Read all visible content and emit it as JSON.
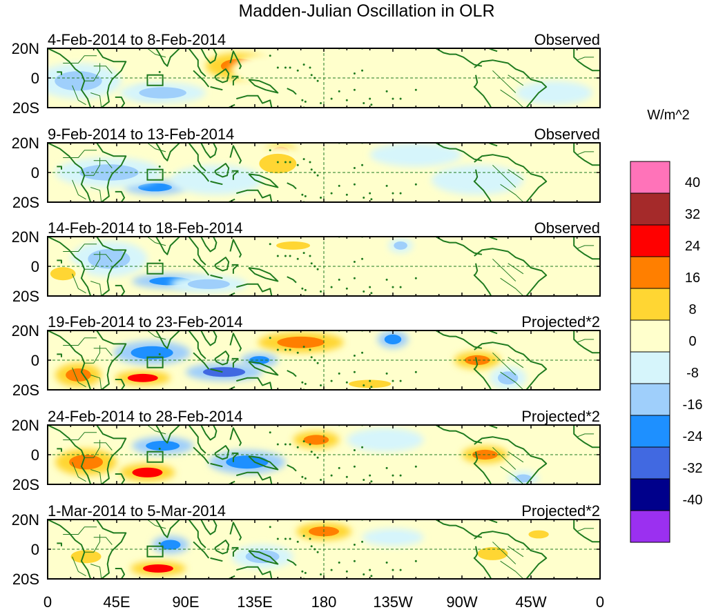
{
  "chart_data": {
    "type": "heatmap",
    "title": "Madden-Julian Oscillation in OLR",
    "units": "W/m^2",
    "x_tick_labels": [
      "0",
      "45E",
      "90E",
      "135E",
      "180",
      "135W",
      "90W",
      "45W",
      "0"
    ],
    "x_ticks_lon": [
      0,
      45,
      90,
      135,
      180,
      225,
      270,
      315,
      360
    ],
    "y_tick_labels": [
      "20N",
      "0",
      "20S"
    ],
    "y_ticks_lat": [
      20,
      0,
      -20
    ],
    "xlim": [
      0,
      360
    ],
    "ylim": [
      -20,
      20
    ],
    "colorbar": {
      "bins": [
        {
          "color": "#9b30f0"
        },
        {
          "color": "#00008b"
        },
        {
          "color": "#4169e1"
        },
        {
          "color": "#1e90ff"
        },
        {
          "color": "#9fcffb"
        },
        {
          "color": "#d6f5fb"
        },
        {
          "color": "#ffffcc"
        },
        {
          "color": "#ffd633"
        },
        {
          "color": "#ff7f00"
        },
        {
          "color": "#ff0000"
        },
        {
          "color": "#a52a2a"
        },
        {
          "color": "#ff73b9"
        }
      ],
      "tick_labels": [
        "-40",
        "-32",
        "-24",
        "-16",
        "-8",
        "0",
        "8",
        "16",
        "24",
        "32",
        "40"
      ]
    },
    "panels": [
      {
        "period": "4-Feb-2014 to 8-Feb-2014",
        "kind": "Observed",
        "anomalies": [
          {
            "lon": 125,
            "lat": 8,
            "rlon": 22,
            "rlat": 9,
            "value": 22
          },
          {
            "lon": 136,
            "lat": 4,
            "rlon": 20,
            "rlat": 5,
            "value": 20
          },
          {
            "lon": 68,
            "lat": -10,
            "rlon": 12,
            "rlat": 4,
            "value": -22
          },
          {
            "lon": 75,
            "lat": -10,
            "rlon": 28,
            "rlat": 7,
            "value": -10
          },
          {
            "lon": 20,
            "lat": -2,
            "rlon": 28,
            "rlat": 12,
            "value": -10
          },
          {
            "lon": 150,
            "lat": 5,
            "rlon": 30,
            "rlat": 12,
            "value": 5
          },
          {
            "lon": 200,
            "lat": -5,
            "rlon": 30,
            "rlat": 10,
            "value": 5
          },
          {
            "lon": 320,
            "lat": 5,
            "rlon": 25,
            "rlat": 10,
            "value": 5
          },
          {
            "lon": 330,
            "lat": -10,
            "rlon": 25,
            "rlat": 8,
            "value": -5
          }
        ]
      },
      {
        "period": "9-Feb-2014 to 13-Feb-2014",
        "kind": "Observed",
        "anomalies": [
          {
            "lon": 152,
            "lat": 14,
            "rlon": 10,
            "rlat": 6,
            "value": 20
          },
          {
            "lon": 150,
            "lat": 6,
            "rlon": 22,
            "rlat": 12,
            "value": 10
          },
          {
            "lon": 70,
            "lat": -10,
            "rlon": 20,
            "rlat": 5,
            "value": -20
          },
          {
            "lon": 40,
            "lat": 0,
            "rlon": 35,
            "rlat": 10,
            "value": -10
          },
          {
            "lon": 110,
            "lat": -5,
            "rlon": 30,
            "rlat": 10,
            "value": -8
          },
          {
            "lon": 240,
            "lat": 12,
            "rlon": 30,
            "rlat": 8,
            "value": -8
          },
          {
            "lon": 280,
            "lat": -5,
            "rlon": 30,
            "rlat": 10,
            "value": -6
          },
          {
            "lon": 340,
            "lat": 8,
            "rlon": 18,
            "rlat": 8,
            "value": 5
          }
        ]
      },
      {
        "period": "14-Feb-2014 to 18-Feb-2014",
        "kind": "Observed",
        "anomalies": [
          {
            "lon": 160,
            "lat": 14,
            "rlon": 20,
            "rlat": 5,
            "value": 12
          },
          {
            "lon": 80,
            "lat": -10,
            "rlon": 25,
            "rlat": 5,
            "value": -20
          },
          {
            "lon": 105,
            "lat": -12,
            "rlon": 25,
            "rlat": 6,
            "value": -10
          },
          {
            "lon": 40,
            "lat": 5,
            "rlon": 25,
            "rlat": 12,
            "value": -10
          },
          {
            "lon": 10,
            "lat": -5,
            "rlon": 15,
            "rlat": 8,
            "value": 10
          },
          {
            "lon": 210,
            "lat": 5,
            "rlon": 35,
            "rlat": 10,
            "value": 5
          },
          {
            "lon": 230,
            "lat": 14,
            "rlon": 8,
            "rlat": 5,
            "value": -10
          },
          {
            "lon": 300,
            "lat": 0,
            "rlon": 30,
            "rlat": 10,
            "value": 5
          }
        ]
      },
      {
        "period": "19-Feb-2014 to 23-Feb-2014",
        "kind": "Projected*2",
        "anomalies": [
          {
            "lon": 165,
            "lat": 12,
            "rlon": 28,
            "rlat": 7,
            "value": 18
          },
          {
            "lon": 62,
            "lat": -12,
            "rlon": 18,
            "rlat": 5,
            "value": 28
          },
          {
            "lon": 20,
            "lat": -10,
            "rlon": 15,
            "rlat": 8,
            "value": 18
          },
          {
            "lon": 68,
            "lat": 5,
            "rlon": 25,
            "rlat": 8,
            "value": -22
          },
          {
            "lon": 115,
            "lat": -8,
            "rlon": 25,
            "rlat": 6,
            "value": -28
          },
          {
            "lon": 138,
            "lat": 0,
            "rlon": 12,
            "rlat": 5,
            "value": -20
          },
          {
            "lon": 225,
            "lat": 14,
            "rlon": 10,
            "rlat": 6,
            "value": -18
          },
          {
            "lon": 210,
            "lat": -16,
            "rlon": 25,
            "rlat": 5,
            "value": 10
          },
          {
            "lon": 280,
            "lat": 0,
            "rlon": 15,
            "rlat": 6,
            "value": 16
          },
          {
            "lon": 300,
            "lat": -12,
            "rlon": 12,
            "rlat": 8,
            "value": -15
          },
          {
            "lon": 335,
            "lat": 5,
            "rlon": 20,
            "rlat": 8,
            "value": 5
          }
        ]
      },
      {
        "period": "24-Feb-2014 to 28-Feb-2014",
        "kind": "Projected*2",
        "anomalies": [
          {
            "lon": 175,
            "lat": 10,
            "rlon": 15,
            "rlat": 6,
            "value": 22
          },
          {
            "lon": 65,
            "lat": -12,
            "rlon": 18,
            "rlat": 6,
            "value": 28
          },
          {
            "lon": 25,
            "lat": -5,
            "rlon": 20,
            "rlat": 9,
            "value": 18
          },
          {
            "lon": 75,
            "lat": 6,
            "rlon": 20,
            "rlat": 6,
            "value": -20
          },
          {
            "lon": 130,
            "lat": -5,
            "rlon": 25,
            "rlat": 8,
            "value": -22
          },
          {
            "lon": 220,
            "lat": 10,
            "rlon": 25,
            "rlat": 8,
            "value": -8
          },
          {
            "lon": 285,
            "lat": 0,
            "rlon": 15,
            "rlat": 6,
            "value": 18
          },
          {
            "lon": 310,
            "lat": -16,
            "rlon": 10,
            "rlat": 5,
            "value": -16
          }
        ]
      },
      {
        "period": "1-Mar-2014 to 5-Mar-2014",
        "kind": "Projected*2",
        "anomalies": [
          {
            "lon": 180,
            "lat": 12,
            "rlon": 18,
            "rlat": 6,
            "value": 20
          },
          {
            "lon": 72,
            "lat": -13,
            "rlon": 18,
            "rlat": 5,
            "value": 28
          },
          {
            "lon": 25,
            "lat": -5,
            "rlon": 18,
            "rlat": 8,
            "value": 12
          },
          {
            "lon": 80,
            "lat": 3,
            "rlon": 12,
            "rlat": 6,
            "value": -18
          },
          {
            "lon": 140,
            "lat": -5,
            "rlon": 20,
            "rlat": 8,
            "value": -12
          },
          {
            "lon": 225,
            "lat": 8,
            "rlon": 20,
            "rlat": 6,
            "value": -8
          },
          {
            "lon": 290,
            "lat": -3,
            "rlon": 18,
            "rlat": 8,
            "value": 12
          },
          {
            "lon": 320,
            "lat": 10,
            "rlon": 12,
            "rlat": 5,
            "value": 8
          }
        ]
      }
    ]
  },
  "colors": {
    "coast": "#1e7a1e",
    "box": "#1e7a1e",
    "guide": "#1e7a1e",
    "frame": "#000000"
  }
}
